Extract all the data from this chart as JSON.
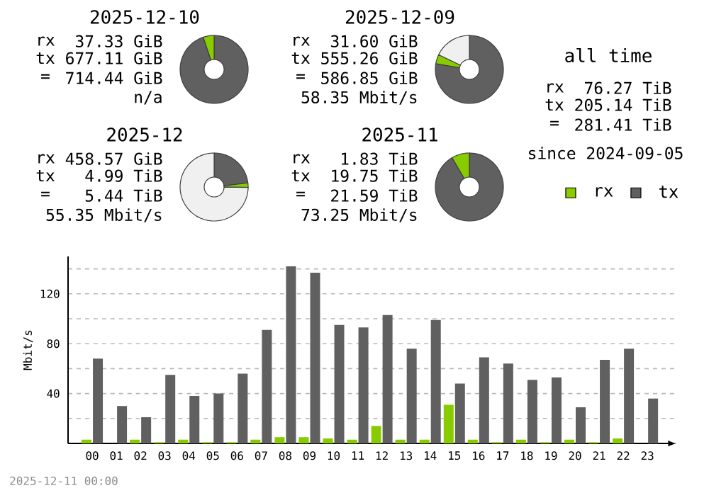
{
  "chart_data": [
    {
      "type": "donut",
      "title": "2025-12-10",
      "categories": [
        null,
        null
      ],
      "values": [
        94.8,
        5.2
      ],
      "colors": [
        "#606060",
        "#88cc00"
      ],
      "annotations": [
        "rx",
        "37.33 GiB",
        "tx",
        "677.11 GiB",
        "=",
        "714.44 GiB",
        "n/a"
      ]
    },
    {
      "type": "donut",
      "title": "2025-12-09",
      "categories": [
        null,
        null,
        null
      ],
      "values": [
        77.7,
        4.4,
        17.9
      ],
      "colors": [
        "#606060",
        "#88cc00",
        "#f0f0f0"
      ],
      "annotations": [
        "rx",
        "31.60 GiB",
        "tx",
        "555.26 GiB",
        "=",
        "586.85 GiB",
        "58.35 Mbit/s"
      ]
    },
    {
      "type": "other",
      "title": "all time",
      "annotations": [
        "rx",
        "76.27 TiB",
        "tx",
        "205.14 TiB",
        "=",
        "281.41 TiB",
        "since 2024-09-05"
      ]
    },
    {
      "type": "donut",
      "title": "2025-12",
      "categories": [
        null,
        null,
        null
      ],
      "values": [
        23.1,
        2.1,
        74.8
      ],
      "colors": [
        "#606060",
        "#88cc00",
        "#f0f0f0"
      ],
      "annotations": [
        "rx",
        "458.57 GiB",
        "tx",
        "4.99 TiB",
        "=",
        "5.44 TiB",
        "55.35 Mbit/s"
      ]
    },
    {
      "type": "donut",
      "title": "2025-11",
      "categories": [
        null,
        null
      ],
      "values": [
        91.5,
        8.5
      ],
      "colors": [
        "#606060",
        "#88cc00"
      ],
      "annotations": [
        "rx",
        "1.83 TiB",
        "tx",
        "19.75 TiB",
        "=",
        "21.59 TiB",
        "73.25 Mbit/s"
      ]
    },
    {
      "type": "bar",
      "ylabel": "Mbit/s",
      "categories": [
        "00",
        "01",
        "02",
        "03",
        "04",
        "05",
        "06",
        "07",
        "08",
        "09",
        "10",
        "11",
        "12",
        "13",
        "14",
        "15",
        "16",
        "17",
        "18",
        "19",
        "20",
        "21",
        "22",
        "23"
      ],
      "series": [
        {
          "name": "rx",
          "color": "#88cc00",
          "values": [
            3,
            0,
            3,
            1,
            3,
            1,
            1,
            3,
            5,
            5,
            4,
            3,
            14,
            3,
            3,
            31,
            3,
            1,
            3,
            1,
            3,
            1,
            4,
            0
          ]
        },
        {
          "name": "tx",
          "color": "#606060",
          "values": [
            68,
            30,
            21,
            55,
            38,
            40,
            56,
            91,
            142,
            137,
            95,
            93,
            103,
            76,
            99,
            48,
            69,
            64,
            51,
            53,
            29,
            67,
            76,
            36
          ]
        }
      ],
      "ylim": [
        0,
        150
      ],
      "yticks": [
        {
          "value": 20,
          "label": null
        },
        40,
        {
          "value": 60,
          "label": null
        },
        80,
        {
          "value": 100,
          "label": null
        },
        120,
        {
          "value": 140,
          "label": null
        }
      ],
      "grid": "y",
      "legend": "top right",
      "annotations": [
        "2025-12-11 00:00"
      ]
    }
  ]
}
